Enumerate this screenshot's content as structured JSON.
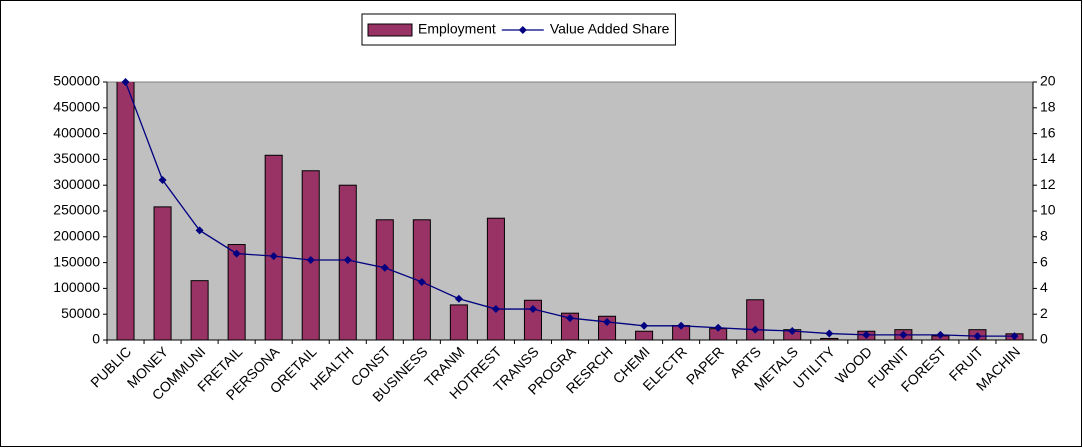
{
  "chart_data": {
    "type": "bar",
    "categories": [
      "PUBLIC",
      "MONEY",
      "COMMUNI",
      "FRETAIL",
      "PERSONA",
      "ORETAIL",
      "HEALTH",
      "CONST",
      "BUSINESS",
      "TRANM",
      "HOTREST",
      "TRANSS",
      "PROGRA",
      "RESRCH",
      "CHEMI",
      "ELECTR",
      "PAPER",
      "ARTS",
      "METALS",
      "UTILITY",
      "WOOD",
      "FURNIT",
      "FOREST",
      "FRUIT",
      "MACHIN"
    ],
    "series": [
      {
        "name": "Employment",
        "type": "bar",
        "color": "#993366",
        "values": [
          510000,
          258000,
          115000,
          185000,
          358000,
          328000,
          300000,
          233000,
          233000,
          68000,
          236000,
          77000,
          52000,
          46000,
          17000,
          28000,
          22000,
          78000,
          20000,
          3000,
          17000,
          20000,
          8000,
          20000,
          12000
        ]
      },
      {
        "name": "Value Added Share",
        "type": "line",
        "axis": "y2",
        "color": "#000080",
        "values": [
          20,
          12.4,
          8.5,
          6.7,
          6.5,
          6.2,
          6.2,
          5.6,
          4.5,
          3.2,
          2.4,
          2.4,
          1.7,
          1.4,
          1.1,
          1.1,
          0.95,
          0.8,
          0.7,
          0.5,
          0.4,
          0.4,
          0.4,
          0.3,
          0.3
        ]
      }
    ],
    "ylim": [
      0,
      500000
    ],
    "yticks": [
      0,
      50000,
      100000,
      150000,
      200000,
      250000,
      300000,
      350000,
      400000,
      450000,
      500000
    ],
    "y2lim": [
      0,
      20
    ],
    "y2ticks": [
      0,
      2,
      4,
      6,
      8,
      10,
      12,
      14,
      16,
      18,
      20
    ],
    "plot_background": "#c0c0c0",
    "grid": false,
    "legend": "top"
  }
}
